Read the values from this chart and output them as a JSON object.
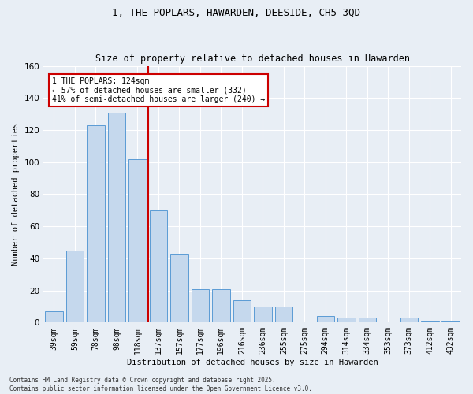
{
  "title": "1, THE POPLARS, HAWARDEN, DEESIDE, CH5 3QD",
  "subtitle": "Size of property relative to detached houses in Hawarden",
  "xlabel": "Distribution of detached houses by size in Hawarden",
  "ylabel": "Number of detached properties",
  "categories": [
    "39sqm",
    "59sqm",
    "78sqm",
    "98sqm",
    "118sqm",
    "137sqm",
    "157sqm",
    "177sqm",
    "196sqm",
    "216sqm",
    "236sqm",
    "255sqm",
    "275sqm",
    "294sqm",
    "314sqm",
    "334sqm",
    "353sqm",
    "373sqm",
    "412sqm",
    "432sqm"
  ],
  "values": [
    7,
    45,
    123,
    131,
    102,
    70,
    43,
    21,
    21,
    14,
    10,
    10,
    0,
    4,
    3,
    3,
    0,
    3,
    1,
    1
  ],
  "bar_color": "#c5d8ed",
  "bar_edge_color": "#5b9bd5",
  "ylim": [
    0,
    160
  ],
  "yticks": [
    0,
    20,
    40,
    60,
    80,
    100,
    120,
    140,
    160
  ],
  "property_line_index": 4,
  "property_line_label": "1 THE POPLARS: 124sqm",
  "annotation_line1": "← 57% of detached houses are smaller (332)",
  "annotation_line2": "41% of semi-detached houses are larger (240) →",
  "annotation_box_color": "#ffffff",
  "annotation_box_edge": "#cc0000",
  "vline_color": "#cc0000",
  "footnote1": "Contains HM Land Registry data © Crown copyright and database right 2025.",
  "footnote2": "Contains public sector information licensed under the Open Government Licence v3.0.",
  "background_color": "#e8eef5",
  "plot_background": "#e8eef5",
  "grid_color": "#ffffff",
  "title_fontsize": 9,
  "subtitle_fontsize": 8.5,
  "axis_label_fontsize": 7.5,
  "tick_label_fontsize": 7,
  "annotation_fontsize": 7
}
